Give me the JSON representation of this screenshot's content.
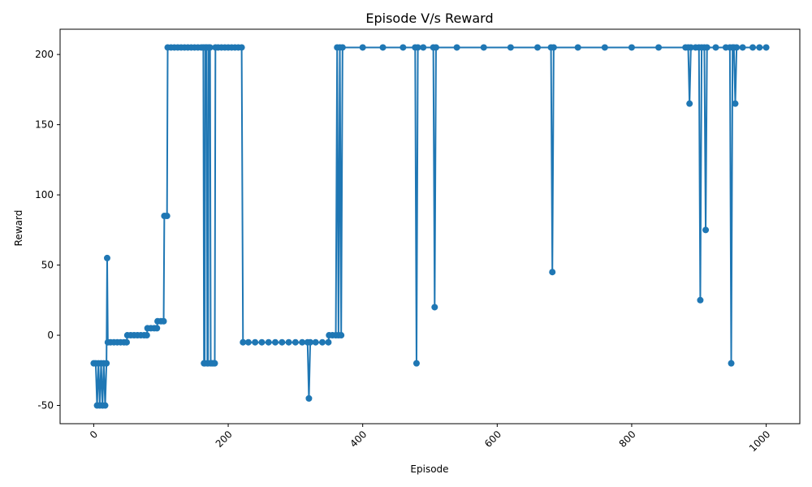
{
  "chart_data": {
    "type": "line",
    "title": "Episode V/s Reward",
    "xlabel": "Episode",
    "ylabel": "Reward",
    "xlim": [
      -50,
      1050
    ],
    "ylim": [
      -63,
      218
    ],
    "xticks": [
      0,
      200,
      400,
      600,
      800,
      1000
    ],
    "yticks": [
      -50,
      0,
      50,
      100,
      150,
      200
    ],
    "xtick_rotation": 45,
    "grid": false,
    "legend": "none",
    "marker": "circle",
    "series": [
      {
        "color": "#1f77b4",
        "points": [
          [
            0,
            -20
          ],
          [
            3,
            -20
          ],
          [
            5,
            -50
          ],
          [
            7,
            -20
          ],
          [
            9,
            -50
          ],
          [
            11,
            -20
          ],
          [
            13,
            -50
          ],
          [
            15,
            -20
          ],
          [
            17,
            -50
          ],
          [
            19,
            -20
          ],
          [
            20,
            55
          ],
          [
            21,
            -5
          ],
          [
            25,
            -5
          ],
          [
            30,
            -5
          ],
          [
            35,
            -5
          ],
          [
            40,
            -5
          ],
          [
            45,
            -5
          ],
          [
            49,
            -5
          ],
          [
            50,
            0
          ],
          [
            55,
            0
          ],
          [
            60,
            0
          ],
          [
            65,
            0
          ],
          [
            70,
            0
          ],
          [
            75,
            0
          ],
          [
            79,
            0
          ],
          [
            80,
            5
          ],
          [
            85,
            5
          ],
          [
            90,
            5
          ],
          [
            94,
            5
          ],
          [
            95,
            10
          ],
          [
            100,
            10
          ],
          [
            104,
            10
          ],
          [
            105,
            85
          ],
          [
            109,
            85
          ],
          [
            110,
            205
          ],
          [
            115,
            205
          ],
          [
            120,
            205
          ],
          [
            125,
            205
          ],
          [
            130,
            205
          ],
          [
            135,
            205
          ],
          [
            140,
            205
          ],
          [
            145,
            205
          ],
          [
            150,
            205
          ],
          [
            155,
            205
          ],
          [
            160,
            205
          ],
          [
            163,
            205
          ],
          [
            164,
            -20
          ],
          [
            165,
            -20
          ],
          [
            166,
            205
          ],
          [
            168,
            205
          ],
          [
            169,
            -20
          ],
          [
            170,
            -20
          ],
          [
            171,
            205
          ],
          [
            173,
            205
          ],
          [
            174,
            -20
          ],
          [
            176,
            -20
          ],
          [
            178,
            -20
          ],
          [
            180,
            -20
          ],
          [
            181,
            205
          ],
          [
            185,
            205
          ],
          [
            190,
            205
          ],
          [
            195,
            205
          ],
          [
            200,
            205
          ],
          [
            205,
            205
          ],
          [
            210,
            205
          ],
          [
            215,
            205
          ],
          [
            220,
            205
          ],
          [
            222,
            -5
          ],
          [
            230,
            -5
          ],
          [
            240,
            -5
          ],
          [
            250,
            -5
          ],
          [
            260,
            -5
          ],
          [
            270,
            -5
          ],
          [
            280,
            -5
          ],
          [
            290,
            -5
          ],
          [
            300,
            -5
          ],
          [
            310,
            -5
          ],
          [
            318,
            -5
          ],
          [
            320,
            -45
          ],
          [
            322,
            -5
          ],
          [
            330,
            -5
          ],
          [
            340,
            -5
          ],
          [
            349,
            -5
          ],
          [
            350,
            0
          ],
          [
            355,
            0
          ],
          [
            360,
            0
          ],
          [
            362,
            205
          ],
          [
            364,
            0
          ],
          [
            366,
            205
          ],
          [
            368,
            0
          ],
          [
            370,
            205
          ],
          [
            400,
            205
          ],
          [
            430,
            205
          ],
          [
            460,
            205
          ],
          [
            478,
            205
          ],
          [
            480,
            -20
          ],
          [
            482,
            205
          ],
          [
            490,
            205
          ],
          [
            505,
            205
          ],
          [
            507,
            20
          ],
          [
            509,
            205
          ],
          [
            540,
            205
          ],
          [
            580,
            205
          ],
          [
            620,
            205
          ],
          [
            660,
            205
          ],
          [
            680,
            205
          ],
          [
            682,
            45
          ],
          [
            684,
            205
          ],
          [
            720,
            205
          ],
          [
            760,
            205
          ],
          [
            800,
            205
          ],
          [
            840,
            205
          ],
          [
            880,
            205
          ],
          [
            884,
            205
          ],
          [
            886,
            165
          ],
          [
            888,
            205
          ],
          [
            895,
            205
          ],
          [
            900,
            205
          ],
          [
            902,
            25
          ],
          [
            904,
            205
          ],
          [
            908,
            205
          ],
          [
            910,
            75
          ],
          [
            912,
            205
          ],
          [
            925,
            205
          ],
          [
            940,
            205
          ],
          [
            946,
            205
          ],
          [
            948,
            -20
          ],
          [
            950,
            205
          ],
          [
            952,
            205
          ],
          [
            954,
            165
          ],
          [
            956,
            205
          ],
          [
            965,
            205
          ],
          [
            980,
            205
          ],
          [
            990,
            205
          ],
          [
            1000,
            205
          ]
        ]
      }
    ]
  }
}
